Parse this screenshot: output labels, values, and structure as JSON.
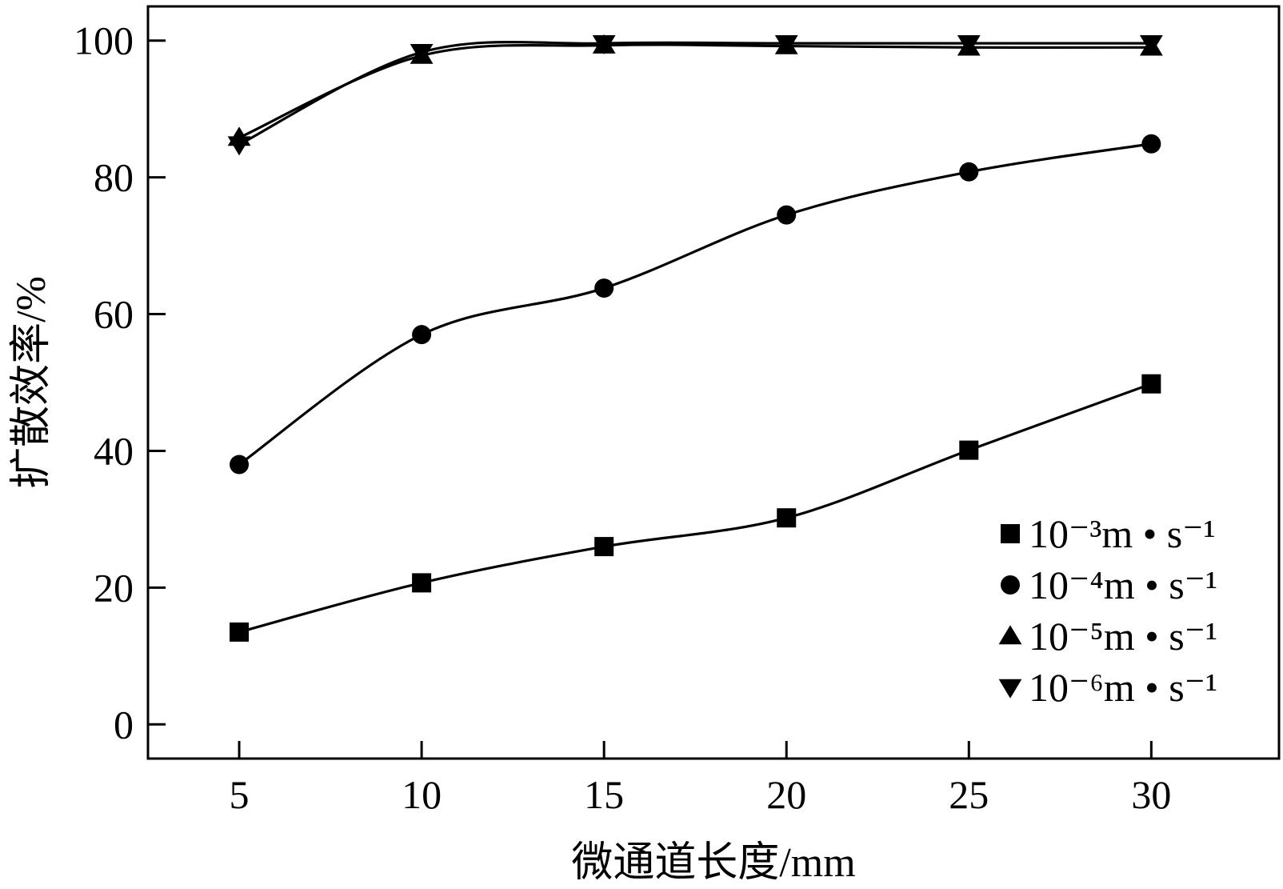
{
  "chart_data": {
    "type": "line",
    "xlabel": "微通道长度/mm",
    "ylabel": "扩散效率/%",
    "x": [
      5,
      10,
      15,
      20,
      25,
      30
    ],
    "xlim": [
      2.5,
      33.5
    ],
    "ylim": [
      -5,
      105
    ],
    "xticks": [
      5,
      10,
      15,
      20,
      25,
      30
    ],
    "yticks": [
      0,
      20,
      40,
      60,
      80,
      100
    ],
    "grid": false,
    "legend_position": "bottom-right",
    "series": [
      {
        "name": "10⁻³m • s⁻¹",
        "marker": "square",
        "values": [
          13.5,
          20.7,
          26,
          30.2,
          40.1,
          49.8
        ]
      },
      {
        "name": "10⁻⁴m • s⁻¹",
        "marker": "circle",
        "values": [
          38,
          57,
          63.8,
          74.5,
          80.8,
          84.9
        ]
      },
      {
        "name": "10⁻⁵m • s⁻¹",
        "marker": "triangle-up",
        "values": [
          85.8,
          97.8,
          99.3,
          99.2,
          99,
          99
        ]
      },
      {
        "name": "10⁻⁶m • s⁻¹",
        "marker": "triangle-down",
        "values": [
          84.8,
          98.3,
          99.6,
          99.6,
          99.6,
          99.6
        ]
      }
    ],
    "colors": {
      "line": "#000000",
      "marker": "#000000",
      "frame": "#000000"
    }
  }
}
